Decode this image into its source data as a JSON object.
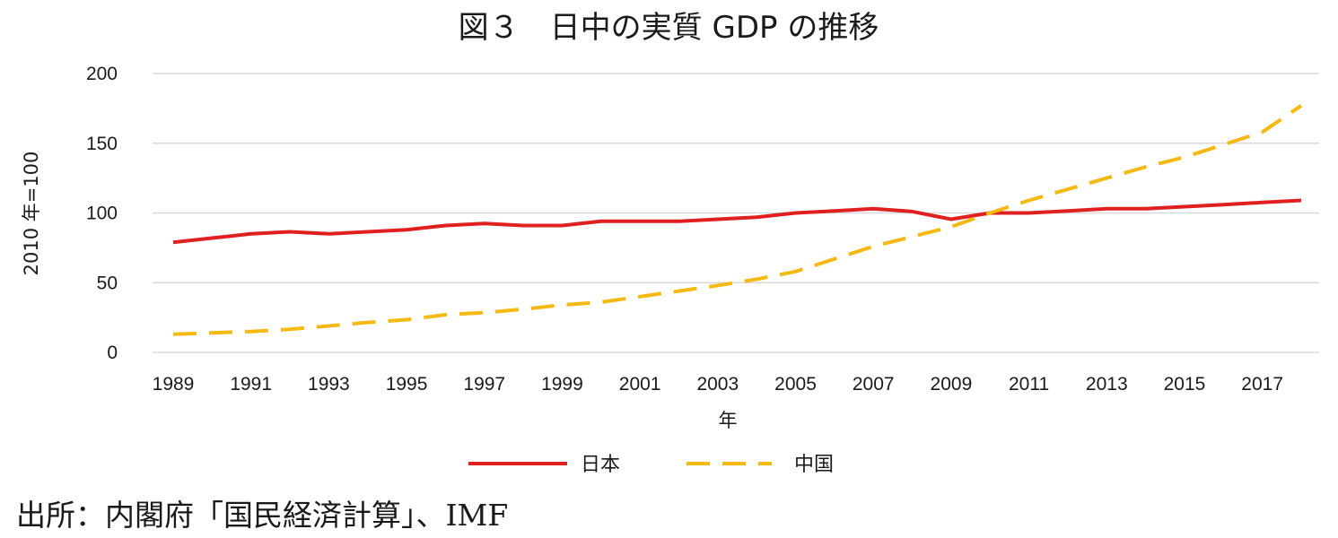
{
  "chart_data": {
    "type": "line",
    "title": "図３　日中の実質 GDP の推移",
    "xlabel": "年",
    "ylabel": "2010 年=100",
    "ylim": [
      0,
      200
    ],
    "yticks": [
      0,
      50,
      100,
      150,
      200
    ],
    "xticks": [
      "1989",
      "1991",
      "1993",
      "1995",
      "1997",
      "1999",
      "2001",
      "2003",
      "2005",
      "2007",
      "2009",
      "2011",
      "2013",
      "2015",
      "2017"
    ],
    "grid": true,
    "legend_position": "bottom",
    "x": [
      1989,
      1990,
      1991,
      1992,
      1993,
      1994,
      1995,
      1996,
      1997,
      1998,
      1999,
      2000,
      2001,
      2002,
      2003,
      2004,
      2005,
      2006,
      2007,
      2008,
      2009,
      2010,
      2011,
      2012,
      2013,
      2014,
      2015,
      2016,
      2017,
      2018
    ],
    "series": [
      {
        "name": "日本",
        "color": "#e02020",
        "style": "solid",
        "values": [
          79,
          82,
          85,
          86.5,
          85,
          86.5,
          88,
          91,
          92.5,
          91,
          91,
          94,
          94,
          94,
          95.5,
          97,
          100,
          101.5,
          103,
          101,
          95.5,
          100,
          100,
          101.5,
          103,
          103,
          104.5,
          106,
          107.5,
          109
        ]
      },
      {
        "name": "中国",
        "color": "#f5b914",
        "style": "dashed",
        "values": [
          13,
          14,
          15,
          16.5,
          19,
          21.5,
          23.5,
          27,
          28.5,
          31,
          34,
          36,
          40,
          44,
          48,
          52.5,
          58,
          67,
          76,
          83,
          90,
          100,
          109,
          117,
          125,
          133,
          140,
          149,
          158,
          177
        ]
      }
    ]
  },
  "source_note": "出所：内閣府「国民経済計算」、IMF"
}
